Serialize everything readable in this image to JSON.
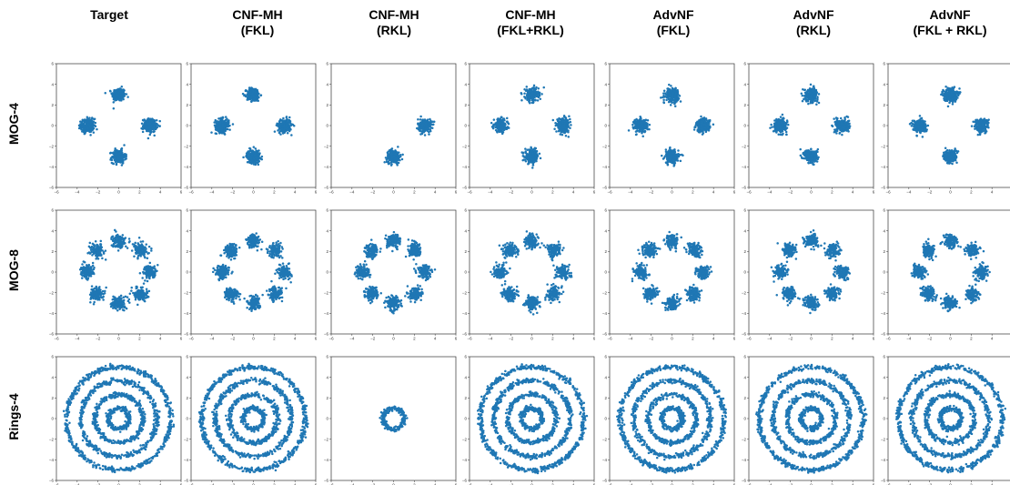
{
  "columns": [
    {
      "title": "Target"
    },
    {
      "title": "CNF-MH",
      "subtitle": "(FKL)"
    },
    {
      "title": "CNF-MH",
      "subtitle": "(RKL)"
    },
    {
      "title": "CNF-MH",
      "subtitle": "(FKL+RKL)"
    },
    {
      "title": "AdvNF",
      "subtitle": "(FKL)"
    },
    {
      "title": "AdvNF",
      "subtitle": "(RKL)"
    },
    {
      "title": "AdvNF",
      "subtitle": "(FKL + RKL)"
    }
  ],
  "rows": [
    {
      "label": "MOG-4"
    },
    {
      "label": "MOG-8"
    },
    {
      "label": "Rings-4"
    }
  ],
  "chart_data": {
    "type": "scatter",
    "title": "",
    "xlabel": "",
    "ylabel": "",
    "xlim": [
      -6,
      6
    ],
    "ylim": [
      -6,
      6
    ],
    "xticks": [
      -6,
      -4,
      -2,
      0,
      2,
      4,
      6
    ],
    "yticks": [
      -6,
      -4,
      -2,
      0,
      2,
      4,
      6
    ],
    "grid": false,
    "point_color": "#1f77b4",
    "datasets": {
      "MOG-4": {
        "modes": [
          [
            0,
            3
          ],
          [
            -3,
            0
          ],
          [
            3,
            0
          ],
          [
            0,
            -3
          ]
        ],
        "spread": 0.32
      },
      "MOG-8": {
        "modes": [
          [
            3,
            0
          ],
          [
            2.12,
            2.12
          ],
          [
            0,
            3
          ],
          [
            -2.12,
            2.12
          ],
          [
            -3,
            0
          ],
          [
            -2.12,
            -2.12
          ],
          [
            0,
            -3
          ],
          [
            2.12,
            -2.12
          ]
        ],
        "spread": 0.32
      },
      "Rings-4": {
        "radii": [
          1,
          2.33,
          3.67,
          5
        ],
        "spread": 0.12
      }
    },
    "panels": [
      [
        {
          "column": "Target",
          "dataset": "MOG-4",
          "active": [
            0,
            1,
            2,
            3
          ]
        },
        {
          "column": "CNF-MH (FKL)",
          "dataset": "MOG-4",
          "active": [
            0,
            1,
            2,
            3
          ]
        },
        {
          "column": "CNF-MH (RKL)",
          "dataset": "MOG-4",
          "active": [
            2,
            3
          ]
        },
        {
          "column": "CNF-MH (FKL+RKL)",
          "dataset": "MOG-4",
          "active": [
            0,
            1,
            2,
            3
          ]
        },
        {
          "column": "AdvNF (FKL)",
          "dataset": "MOG-4",
          "active": [
            0,
            1,
            2,
            3
          ]
        },
        {
          "column": "AdvNF (RKL)",
          "dataset": "MOG-4",
          "active": [
            0,
            1,
            2,
            3
          ]
        },
        {
          "column": "AdvNF (FKL + RKL)",
          "dataset": "MOG-4",
          "active": [
            0,
            1,
            2,
            3
          ]
        }
      ],
      [
        {
          "column": "Target",
          "dataset": "MOG-8",
          "active": [
            0,
            1,
            2,
            3,
            4,
            5,
            6,
            7
          ]
        },
        {
          "column": "CNF-MH (FKL)",
          "dataset": "MOG-8",
          "active": [
            0,
            1,
            2,
            3,
            4,
            5,
            6,
            7
          ]
        },
        {
          "column": "CNF-MH (RKL)",
          "dataset": "MOG-8",
          "active": [
            0,
            1,
            2,
            3,
            4,
            5,
            6,
            7
          ]
        },
        {
          "column": "CNF-MH (FKL+RKL)",
          "dataset": "MOG-8",
          "active": [
            0,
            1,
            2,
            3,
            4,
            5,
            6,
            7
          ]
        },
        {
          "column": "AdvNF (FKL)",
          "dataset": "MOG-8",
          "active": [
            0,
            1,
            2,
            3,
            4,
            5,
            6,
            7
          ]
        },
        {
          "column": "AdvNF (RKL)",
          "dataset": "MOG-8",
          "active": [
            0,
            1,
            2,
            3,
            4,
            5,
            6,
            7
          ]
        },
        {
          "column": "AdvNF (FKL + RKL)",
          "dataset": "MOG-8",
          "active": [
            0,
            1,
            2,
            3,
            4,
            5,
            6,
            7
          ]
        }
      ],
      [
        {
          "column": "Target",
          "dataset": "Rings-4",
          "active": [
            0,
            1,
            2,
            3
          ]
        },
        {
          "column": "CNF-MH (FKL)",
          "dataset": "Rings-4",
          "active": [
            0,
            1,
            2,
            3
          ]
        },
        {
          "column": "CNF-MH (RKL)",
          "dataset": "Rings-4",
          "active": [
            0
          ]
        },
        {
          "column": "CNF-MH (FKL+RKL)",
          "dataset": "Rings-4",
          "active": [
            0,
            1,
            2,
            3
          ]
        },
        {
          "column": "AdvNF (FKL)",
          "dataset": "Rings-4",
          "active": [
            0,
            1,
            2,
            3
          ]
        },
        {
          "column": "AdvNF (RKL)",
          "dataset": "Rings-4",
          "active": [
            0,
            1,
            2,
            3
          ]
        },
        {
          "column": "AdvNF (FKL + RKL)",
          "dataset": "Rings-4",
          "active": [
            0,
            1,
            2,
            3
          ]
        }
      ]
    ]
  }
}
